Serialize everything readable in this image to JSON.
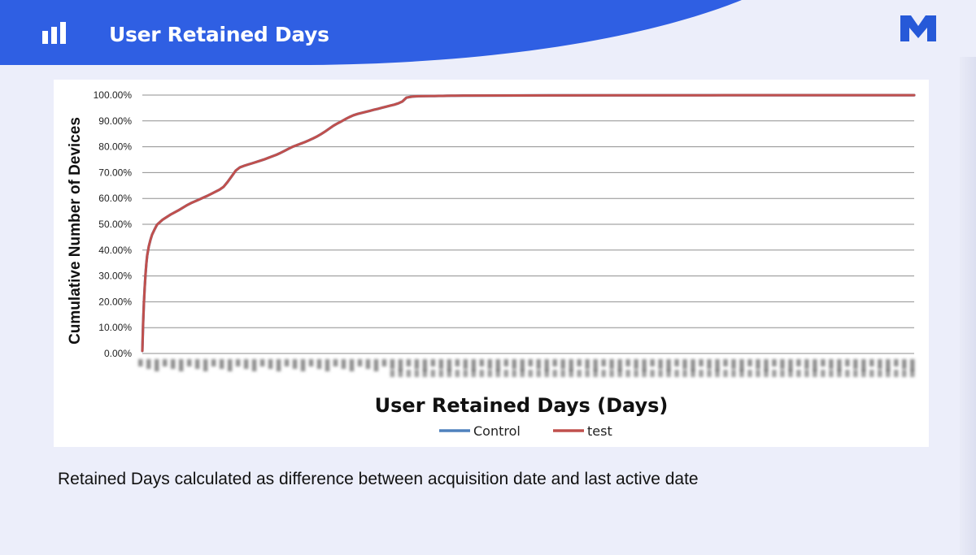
{
  "header": {
    "title": "User Retained Days",
    "icon": "bar-chart-icon",
    "logo_icon": "m-logo-icon",
    "band_color": "#2f5fe3",
    "logo_color": "#2659d8"
  },
  "footnote": "Retained Days calculated as difference between acquisition date and last active date",
  "chart_data": {
    "type": "line",
    "title": "",
    "xlabel": "User Retained Days (Days)",
    "ylabel": "Cumulative Number of Devices",
    "y_ticks": [
      "0.00%",
      "10.00%",
      "20.00%",
      "30.00%",
      "40.00%",
      "50.00%",
      "60.00%",
      "70.00%",
      "80.00%",
      "90.00%",
      "100.00%"
    ],
    "ylim": [
      0,
      100
    ],
    "x_tick_labels": "illegible (blurred)",
    "grid": "horizontal",
    "legend_position": "bottom",
    "x": [
      0,
      1,
      2,
      3,
      4,
      5,
      6,
      8,
      10,
      12,
      15,
      18,
      25,
      35,
      45,
      55,
      60,
      65,
      70,
      75,
      80,
      85,
      90,
      95,
      100,
      105,
      110,
      115,
      120,
      125,
      130,
      135,
      140,
      145,
      150,
      155,
      160,
      165,
      170,
      175,
      180,
      185,
      190,
      195,
      200,
      205,
      210,
      215,
      220,
      225,
      230,
      235,
      240,
      245,
      250,
      255,
      260,
      265,
      270,
      275,
      280,
      285,
      290,
      295,
      300,
      305,
      310,
      315,
      320,
      325,
      330,
      335,
      340,
      345,
      350,
      355,
      360,
      365,
      370,
      375,
      380,
      385,
      390,
      395,
      400,
      500,
      600,
      700,
      800,
      900,
      950
    ],
    "series": [
      {
        "name": "Control",
        "color": "#4f81bd",
        "values": [
          1,
          12,
          20,
          26,
          31,
          35,
          38,
          41.5,
          44,
          46,
          48,
          49.8,
          51.8,
          53.8,
          55.5,
          57.4,
          58.2,
          58.9,
          59.6,
          60.3,
          61,
          61.8,
          62.6,
          63.4,
          64.5,
          66.4,
          68.6,
          70.8,
          72,
          72.6,
          73.1,
          73.6,
          74.1,
          74.6,
          75.1,
          75.7,
          76.3,
          76.9,
          77.6,
          78.4,
          79.2,
          80,
          80.6,
          81.2,
          81.8,
          82.5,
          83.2,
          84,
          84.9,
          85.9,
          87,
          88.1,
          89,
          89.8,
          90.7,
          91.5,
          92.2,
          92.7,
          93.1,
          93.5,
          93.9,
          94.3,
          94.7,
          95.1,
          95.5,
          95.9,
          96.3,
          96.8,
          97.5,
          99,
          99.3,
          99.5,
          99.55,
          99.6,
          99.62,
          99.64,
          99.66,
          99.68,
          99.7,
          99.72,
          99.74,
          99.76,
          99.78,
          99.8,
          99.81,
          99.86,
          99.9,
          99.93,
          99.96,
          99.98,
          99.98
        ]
      },
      {
        "name": "test",
        "color": "#c0504d",
        "values": [
          1,
          12,
          20,
          26,
          31,
          35,
          38,
          41.5,
          44,
          46,
          48,
          49.8,
          51.8,
          53.8,
          55.5,
          57.4,
          58.2,
          58.9,
          59.6,
          60.3,
          61,
          61.8,
          62.6,
          63.4,
          64.5,
          66.4,
          68.6,
          70.8,
          72,
          72.6,
          73.1,
          73.6,
          74.1,
          74.6,
          75.1,
          75.7,
          76.3,
          76.9,
          77.6,
          78.4,
          79.2,
          80,
          80.6,
          81.2,
          81.8,
          82.5,
          83.2,
          84,
          84.9,
          85.9,
          87,
          88.1,
          89,
          89.8,
          90.7,
          91.5,
          92.2,
          92.7,
          93.1,
          93.5,
          93.9,
          94.3,
          94.7,
          95.1,
          95.5,
          95.9,
          96.3,
          96.8,
          97.5,
          99,
          99.3,
          99.5,
          99.55,
          99.6,
          99.62,
          99.64,
          99.66,
          99.68,
          99.7,
          99.72,
          99.74,
          99.76,
          99.78,
          99.8,
          99.81,
          99.86,
          99.9,
          99.93,
          99.96,
          99.98,
          99.98
        ]
      }
    ]
  }
}
